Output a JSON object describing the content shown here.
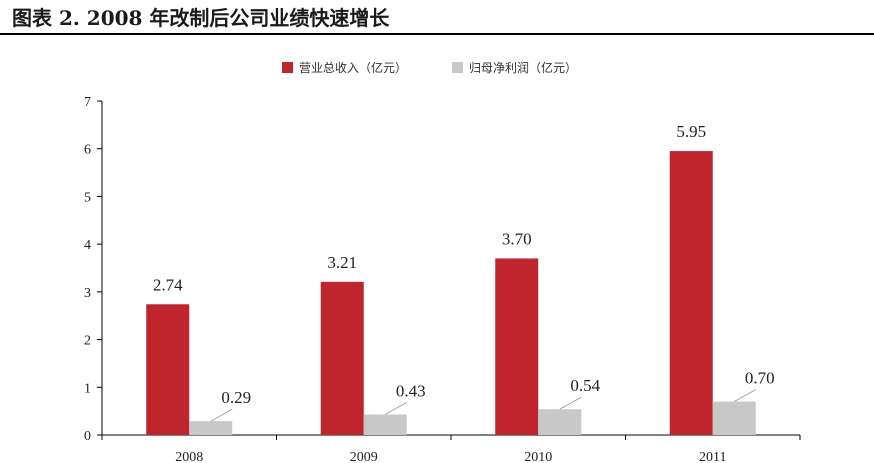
{
  "figure_title": "图表 2.  2008 年改制后公司业绩快速增长",
  "colors": {
    "revenue": "#c0252e",
    "profit": "#c8c8c8",
    "axis": "#000000"
  },
  "chart_data": {
    "type": "bar",
    "categories": [
      "2008",
      "2009",
      "2010",
      "2011"
    ],
    "series": [
      {
        "name": "营业总收入（亿元）",
        "values": [
          2.74,
          3.21,
          3.7,
          5.95
        ],
        "labels": [
          "2.74",
          "3.21",
          "3.70",
          "5.95"
        ]
      },
      {
        "name": "归母净利润（亿元）",
        "values": [
          0.29,
          0.43,
          0.54,
          0.7
        ],
        "labels": [
          "0.29",
          "0.43",
          "0.54",
          "0.70"
        ]
      }
    ],
    "ylim": [
      0,
      7
    ],
    "yticks": [
      "0",
      "1",
      "2",
      "3",
      "4",
      "5",
      "6",
      "7"
    ],
    "legend_position": "top-center",
    "grid": false
  }
}
